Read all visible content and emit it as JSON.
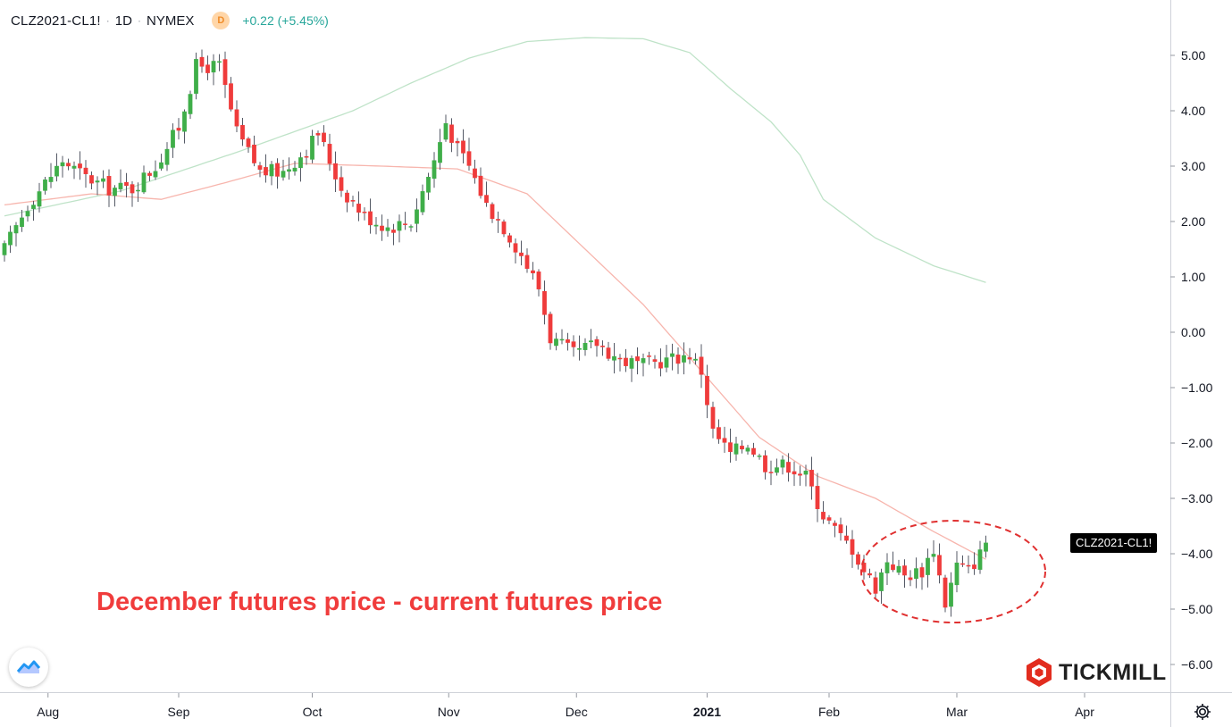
{
  "legend": {
    "symbol": "CLZ2021-CL1!",
    "interval": "1D",
    "exchange": "NYMEX",
    "badge": "D",
    "change": "+0.22 (+5.45%)"
  },
  "annotation_text": "December futures price - current futures price",
  "price_tag": "CLZ2021-CL1!",
  "brand": "TICKMILL",
  "colors": {
    "up": "#3fae49",
    "down": "#ef3b3b",
    "ma_fast": "#f7b5ad",
    "ma_slow": "#bfe3c8",
    "ellipse": "#e03030",
    "annotation": "#f03c3c"
  },
  "icons": {
    "tradingview_logo": "tradingview-cloud-icon",
    "brand_logo": "tickmill-hexagon-icon",
    "settings": "gear-icon"
  },
  "chart_data": {
    "type": "candlestick",
    "x_labels": [
      {
        "label": "Aug",
        "bold": false
      },
      {
        "label": "Sep",
        "bold": false
      },
      {
        "label": "Oct",
        "bold": false
      },
      {
        "label": "Nov",
        "bold": false
      },
      {
        "label": "Dec",
        "bold": false
      },
      {
        "label": "2021",
        "bold": true
      },
      {
        "label": "Feb",
        "bold": false
      },
      {
        "label": "Mar",
        "bold": false
      },
      {
        "label": "Apr",
        "bold": false
      }
    ],
    "y_ticks": [
      "5.00",
      "4.00",
      "3.00",
      "2.00",
      "1.00",
      "0.00",
      "−1.00",
      "−2.00",
      "−3.00",
      "−4.00",
      "−5.00",
      "−6.00"
    ],
    "ylim": [
      -6.5,
      5.9
    ],
    "grid": false,
    "last_value": -3.8,
    "anchors": [
      [
        0,
        1.5
      ],
      [
        4,
        2.3
      ],
      [
        10,
        3.1
      ],
      [
        14,
        2.8
      ],
      [
        18,
        2.6
      ],
      [
        22,
        2.6
      ],
      [
        26,
        3.0
      ],
      [
        30,
        3.7
      ],
      [
        33,
        4.8
      ],
      [
        37,
        4.8
      ],
      [
        40,
        3.6
      ],
      [
        44,
        2.9
      ],
      [
        48,
        2.9
      ],
      [
        52,
        3.3
      ],
      [
        54,
        3.6
      ],
      [
        58,
        2.6
      ],
      [
        62,
        2.1
      ],
      [
        66,
        1.9
      ],
      [
        70,
        2.0
      ],
      [
        74,
        3.1
      ],
      [
        76,
        3.8
      ],
      [
        78,
        3.3
      ],
      [
        80,
        3.0
      ],
      [
        83,
        2.3
      ],
      [
        86,
        1.9
      ],
      [
        89,
        1.4
      ],
      [
        92,
        0.8
      ],
      [
        94,
        -0.1
      ],
      [
        98,
        -0.4
      ],
      [
        102,
        -0.2
      ],
      [
        106,
        -0.5
      ],
      [
        110,
        -0.6
      ],
      [
        114,
        -0.5
      ],
      [
        118,
        -0.4
      ],
      [
        120,
        -0.7
      ],
      [
        122,
        -1.8
      ],
      [
        125,
        -2.2
      ],
      [
        128,
        -2.0
      ],
      [
        131,
        -2.4
      ],
      [
        135,
        -2.4
      ],
      [
        138,
        -2.6
      ],
      [
        141,
        -3.3
      ],
      [
        144,
        -3.7
      ],
      [
        146,
        -3.9
      ],
      [
        148,
        -4.3
      ],
      [
        150,
        -4.6
      ],
      [
        152,
        -4.1
      ],
      [
        155,
        -4.4
      ],
      [
        158,
        -4.3
      ],
      [
        160,
        -3.9
      ],
      [
        162,
        -4.9
      ],
      [
        164,
        -4.2
      ],
      [
        166,
        -4.3
      ],
      [
        168,
        -4.0
      ],
      [
        169,
        -3.8
      ]
    ],
    "ma_fast": [
      [
        0,
        2.3
      ],
      [
        15,
        2.5
      ],
      [
        27,
        2.4
      ],
      [
        38,
        2.7
      ],
      [
        50,
        3.05
      ],
      [
        65,
        3.0
      ],
      [
        78,
        2.95
      ],
      [
        90,
        2.5
      ],
      [
        100,
        1.5
      ],
      [
        110,
        0.5
      ],
      [
        120,
        -0.7
      ],
      [
        130,
        -1.9
      ],
      [
        140,
        -2.6
      ],
      [
        150,
        -3.0
      ],
      [
        160,
        -3.6
      ],
      [
        169,
        -4.1
      ]
    ],
    "ma_slow": [
      [
        0,
        2.1
      ],
      [
        20,
        2.55
      ],
      [
        40,
        3.25
      ],
      [
        60,
        4.0
      ],
      [
        70,
        4.5
      ],
      [
        80,
        4.95
      ],
      [
        90,
        5.25
      ],
      [
        100,
        5.32
      ],
      [
        110,
        5.3
      ],
      [
        118,
        5.05
      ],
      [
        125,
        4.4
      ],
      [
        132,
        3.8
      ],
      [
        137,
        3.2
      ],
      [
        141,
        2.4
      ],
      [
        150,
        1.7
      ],
      [
        160,
        1.2
      ],
      [
        169,
        0.9
      ]
    ]
  }
}
